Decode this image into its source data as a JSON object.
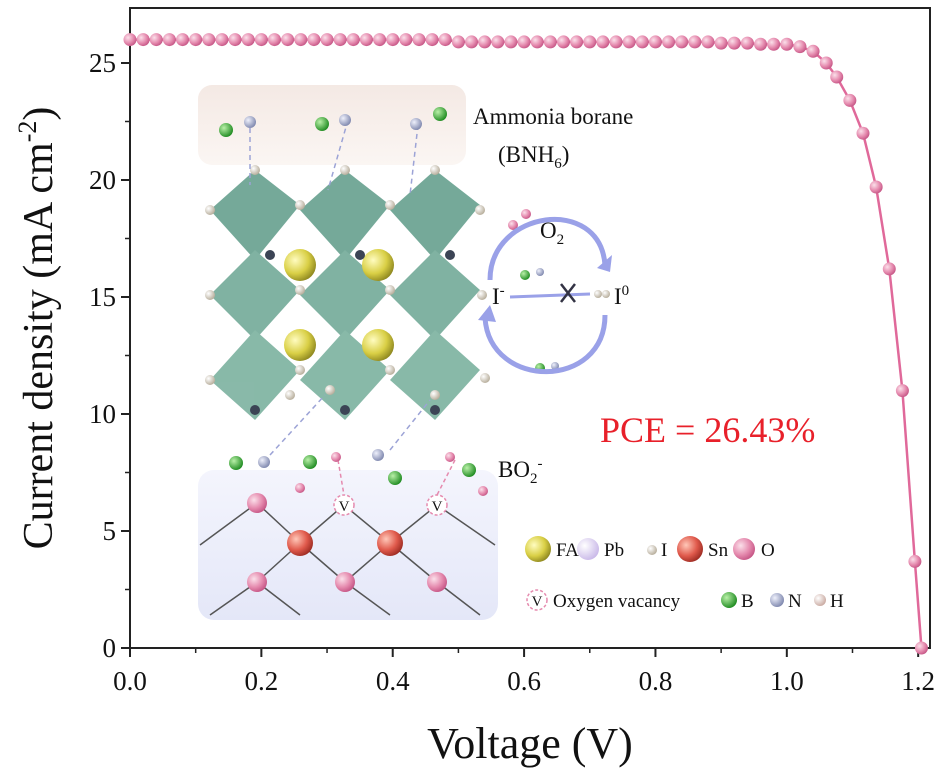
{
  "chart_data": {
    "type": "line",
    "x_label": "Voltage (V)",
    "y_label": {
      "text": "Current density (mA cm",
      "sup": "-2",
      "after": ")"
    },
    "x": [
      0,
      0.02,
      0.04,
      0.06,
      0.08,
      0.1,
      0.12,
      0.14,
      0.16,
      0.18,
      0.2,
      0.22,
      0.24,
      0.26,
      0.28,
      0.3,
      0.32,
      0.34,
      0.36,
      0.38,
      0.4,
      0.42,
      0.44,
      0.46,
      0.48,
      0.5,
      0.52,
      0.54,
      0.56,
      0.58,
      0.6,
      0.62,
      0.64,
      0.66,
      0.68,
      0.7,
      0.72,
      0.74,
      0.76,
      0.78,
      0.8,
      0.82,
      0.84,
      0.86,
      0.88,
      0.9,
      0.92,
      0.94,
      0.96,
      0.98,
      1.0,
      1.02,
      1.04,
      1.06,
      1.076,
      1.096,
      1.116,
      1.136,
      1.156,
      1.176,
      1.195,
      1.205
    ],
    "series": [
      {
        "color": "#e0699a",
        "values": [
          26.0,
          26.0,
          26.0,
          26.0,
          26.0,
          26.0,
          26.0,
          26.0,
          26.0,
          26.0,
          26.0,
          26.0,
          26.0,
          26.0,
          26.0,
          26.0,
          26.0,
          26.0,
          26.0,
          26.0,
          26.0,
          26.0,
          26.0,
          26.0,
          26.0,
          25.9,
          25.9,
          25.9,
          25.9,
          25.9,
          25.9,
          25.9,
          25.9,
          25.9,
          25.9,
          25.9,
          25.9,
          25.9,
          25.9,
          25.9,
          25.9,
          25.9,
          25.9,
          25.9,
          25.9,
          25.85,
          25.85,
          25.85,
          25.8,
          25.8,
          25.8,
          25.7,
          25.5,
          25.0,
          24.4,
          23.4,
          22.0,
          19.7,
          16.2,
          11.0,
          3.7,
          0
        ]
      }
    ],
    "xlim": [
      0,
      1.218
    ],
    "ylim": [
      0,
      27.35
    ],
    "xticks": [
      {
        "value": 0,
        "label": "0.0"
      },
      0.2,
      0.4,
      0.6,
      0.8,
      {
        "value": 1,
        "label": "1.0"
      },
      1.2
    ],
    "xminorticks": [
      0.1,
      0.3,
      0.5,
      0.7,
      0.9,
      1.1
    ],
    "yticks": [
      0,
      5,
      10,
      15,
      20,
      25
    ],
    "yminorticks": [
      2.5,
      7.5,
      12.5,
      17.5,
      22.5
    ],
    "annotations": {
      "pce": "PCE = 26.43%",
      "ammonia": "Ammonia borane",
      "bnh": {
        "text": "(BNH",
        "sub": "6",
        "after": ")"
      },
      "o2": {
        "text": "O",
        "sub": "2"
      },
      "i_minus": {
        "text": "I",
        "sup": "-"
      },
      "i_zero": {
        "text": "I",
        "sup": "0"
      },
      "bo2": {
        "text": "BO",
        "sub": "2",
        "sup": "-"
      },
      "vacancy_mark": "V"
    },
    "legend": [
      "FA",
      "Pb",
      "I",
      "Sn",
      "O",
      "Oxygen vacancy",
      "B",
      "N",
      "H"
    ]
  }
}
